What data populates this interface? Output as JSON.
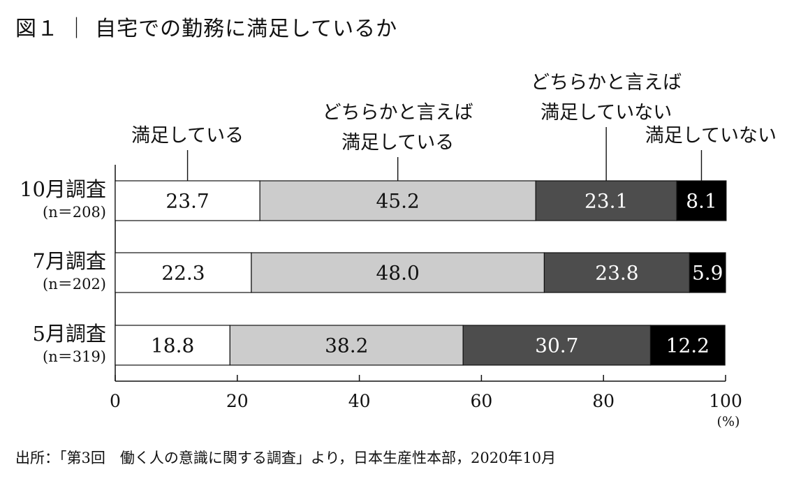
{
  "title": "図１ ｜ 自宅での勤務に満足しているか",
  "source": "出所：「第3回　働く人の意識に関する調査」より，日本生産性本部，2020年10月",
  "chart_data": {
    "type": "bar",
    "orientation": "horizontal",
    "stacked": true,
    "title": "図１ ｜ 自宅での勤務に満足しているか",
    "xlim": [
      0,
      100
    ],
    "x_ticks": [
      "0",
      "20",
      "40",
      "60",
      "80",
      "100"
    ],
    "x_unit": "(%)",
    "categories": [
      {
        "label": "10月調査",
        "n": "(n＝208)"
      },
      {
        "label": "7月調査",
        "n": "(n＝202)"
      },
      {
        "label": "5月調査",
        "n": "(n＝319)"
      }
    ],
    "series": [
      {
        "name_lines": [
          "満足している"
        ],
        "fill": "#ffffff",
        "text_color": "#111111",
        "values": [
          23.7,
          22.3,
          18.8
        ]
      },
      {
        "name_lines": [
          "どちらかと言えば",
          "満足している"
        ],
        "fill": "#cccccc",
        "text_color": "#111111",
        "values": [
          45.2,
          48.0,
          38.2
        ]
      },
      {
        "name_lines": [
          "どちらかと言えば",
          "満足していない"
        ],
        "fill": "#4d4d4d",
        "text_color": "#ffffff",
        "values": [
          23.1,
          23.8,
          30.7
        ]
      },
      {
        "name_lines": [
          "満足していない"
        ],
        "fill": "#000000",
        "text_color": "#ffffff",
        "values": [
          8.1,
          5.9,
          12.2
        ]
      }
    ],
    "legend": "callouts-above-top-bar",
    "grid": false
  }
}
